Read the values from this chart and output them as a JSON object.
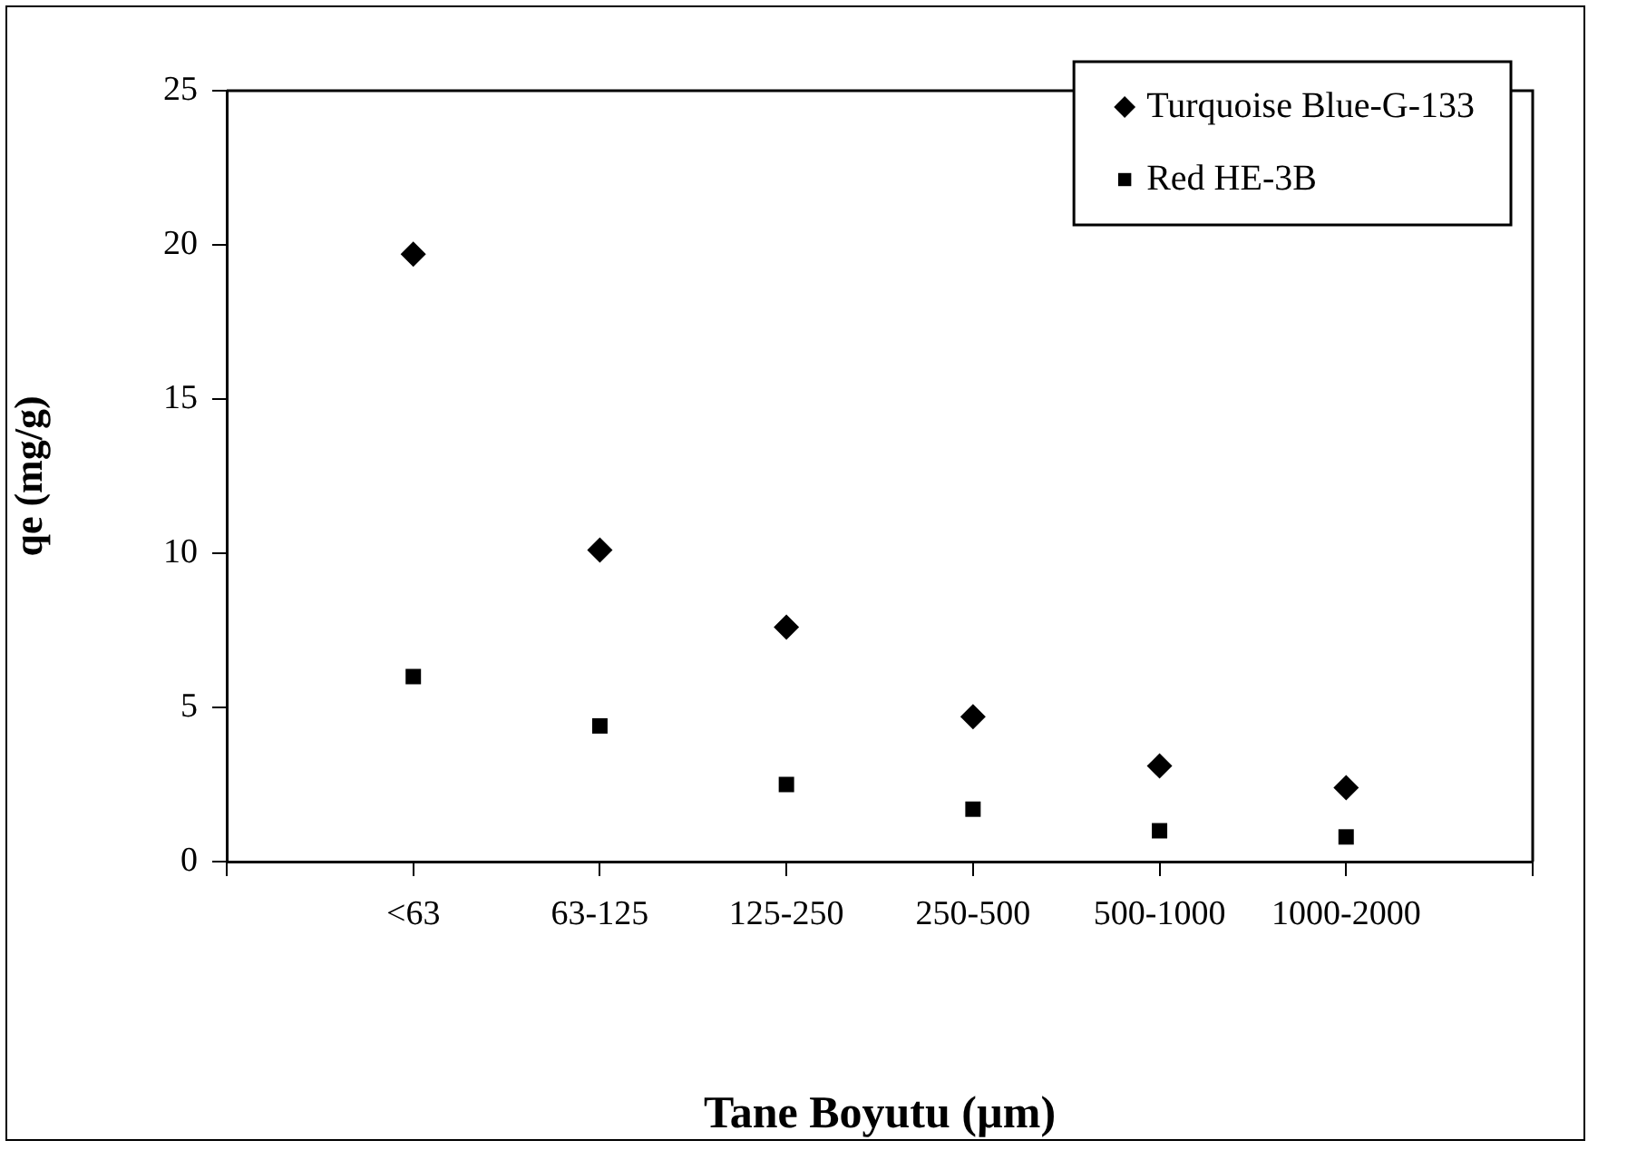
{
  "chart_data": {
    "type": "scatter",
    "xlabel": "Tane Boyutu (µm)",
    "ylabel": "qe (mg/g)",
    "categories": [
      "<63",
      "63-125",
      "125-250",
      "250-500",
      "500-1000",
      "1000-2000"
    ],
    "series": [
      {
        "name": "Turquoise Blue-G-133",
        "color": "#000000",
        "marker": "diamond",
        "values": [
          19.7,
          10.1,
          7.6,
          4.7,
          3.1,
          2.4
        ]
      },
      {
        "name": "Red HE-3B",
        "color": "#000000",
        "marker": "square",
        "values": [
          6.0,
          4.4,
          2.5,
          1.7,
          1.0,
          0.8
        ]
      }
    ],
    "ylim": [
      0,
      25
    ],
    "yticks": [
      0,
      5,
      10,
      15,
      20,
      25
    ],
    "grid": false,
    "legend": "top right"
  }
}
